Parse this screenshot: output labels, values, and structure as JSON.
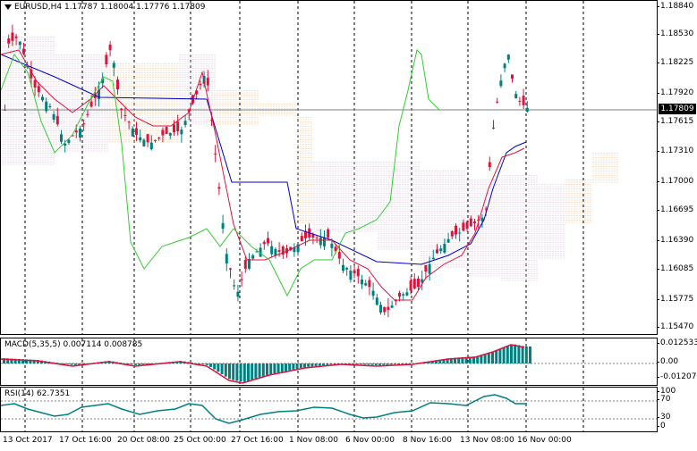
{
  "main": {
    "title": "EURUSD,H4  1.17787 1.18004 1.17776 1.17809",
    "price_ticks": [
      "1.18840",
      "1.18530",
      "1.18225",
      "1.17920",
      "1.17615",
      "1.17310",
      "1.17000",
      "1.16695",
      "1.16390",
      "1.16085",
      "1.15775",
      "1.15470"
    ],
    "current_price": "1.17809"
  },
  "macd": {
    "title": "MACD(5,35,5) 0.007114 0.008785",
    "ticks": [
      "0.012533",
      "0.00",
      "-0.012072"
    ]
  },
  "rsi": {
    "title": "RSI(14) 62.7351",
    "ticks": [
      "100",
      "70",
      "30",
      "0"
    ]
  },
  "time_labels": [
    "13 Oct 2017",
    "17 Oct 16:00",
    "20 Oct 08:00",
    "25 Oct 00:00",
    "27 Oct 16:00",
    "1 Nov 08:00",
    "6 Nov 00:00",
    "8 Nov 16:00",
    "13 Nov 08:00",
    "16 Nov 00:00"
  ],
  "colors": {
    "bull": "#008080",
    "bear": "#dc143c",
    "tenkan": "#dc143c",
    "kijun": "#0000c8",
    "chikou": "#32cd32",
    "cloud_up": "#f4a460",
    "cloud_down": "#c8a2c8",
    "macd_hist": "#008080",
    "macd_signal": "#dc143c",
    "rsi_line": "#008080"
  }
}
